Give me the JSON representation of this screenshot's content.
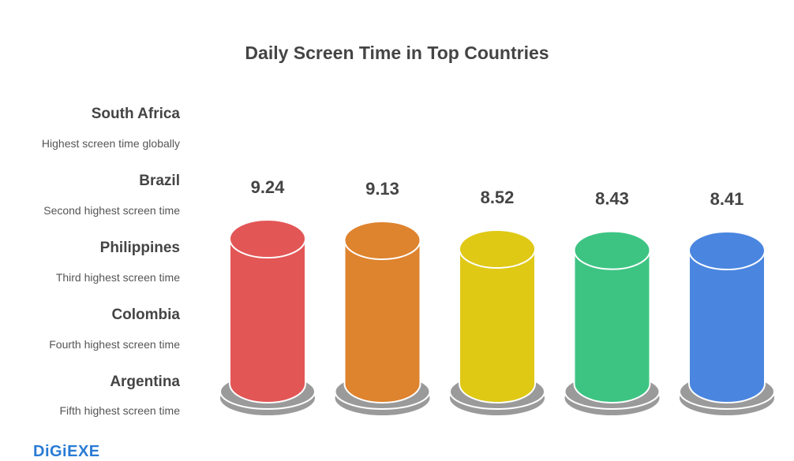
{
  "chart_data": {
    "type": "bar",
    "title": "Daily Screen Time in Top Countries",
    "categories": [
      "South Africa",
      "Brazil",
      "Philippines",
      "Colombia",
      "Argentina"
    ],
    "descriptions": [
      "Highest screen time globally",
      "Second highest screen time",
      "Third highest screen time",
      "Fourth highest screen time",
      "Fifth highest screen time"
    ],
    "values": [
      9.24,
      9.13,
      8.52,
      8.43,
      8.41
    ],
    "value_labels": [
      "9.24",
      "9.13",
      "8.52",
      "8.43",
      "8.41"
    ],
    "colors": [
      "#e35656",
      "#de832e",
      "#dfc915",
      "#3dc483",
      "#4a86e0"
    ],
    "base_color": "#9a9a9a",
    "style": "3d-cylinder",
    "grid": false
  },
  "logo": "DiGiEXE"
}
